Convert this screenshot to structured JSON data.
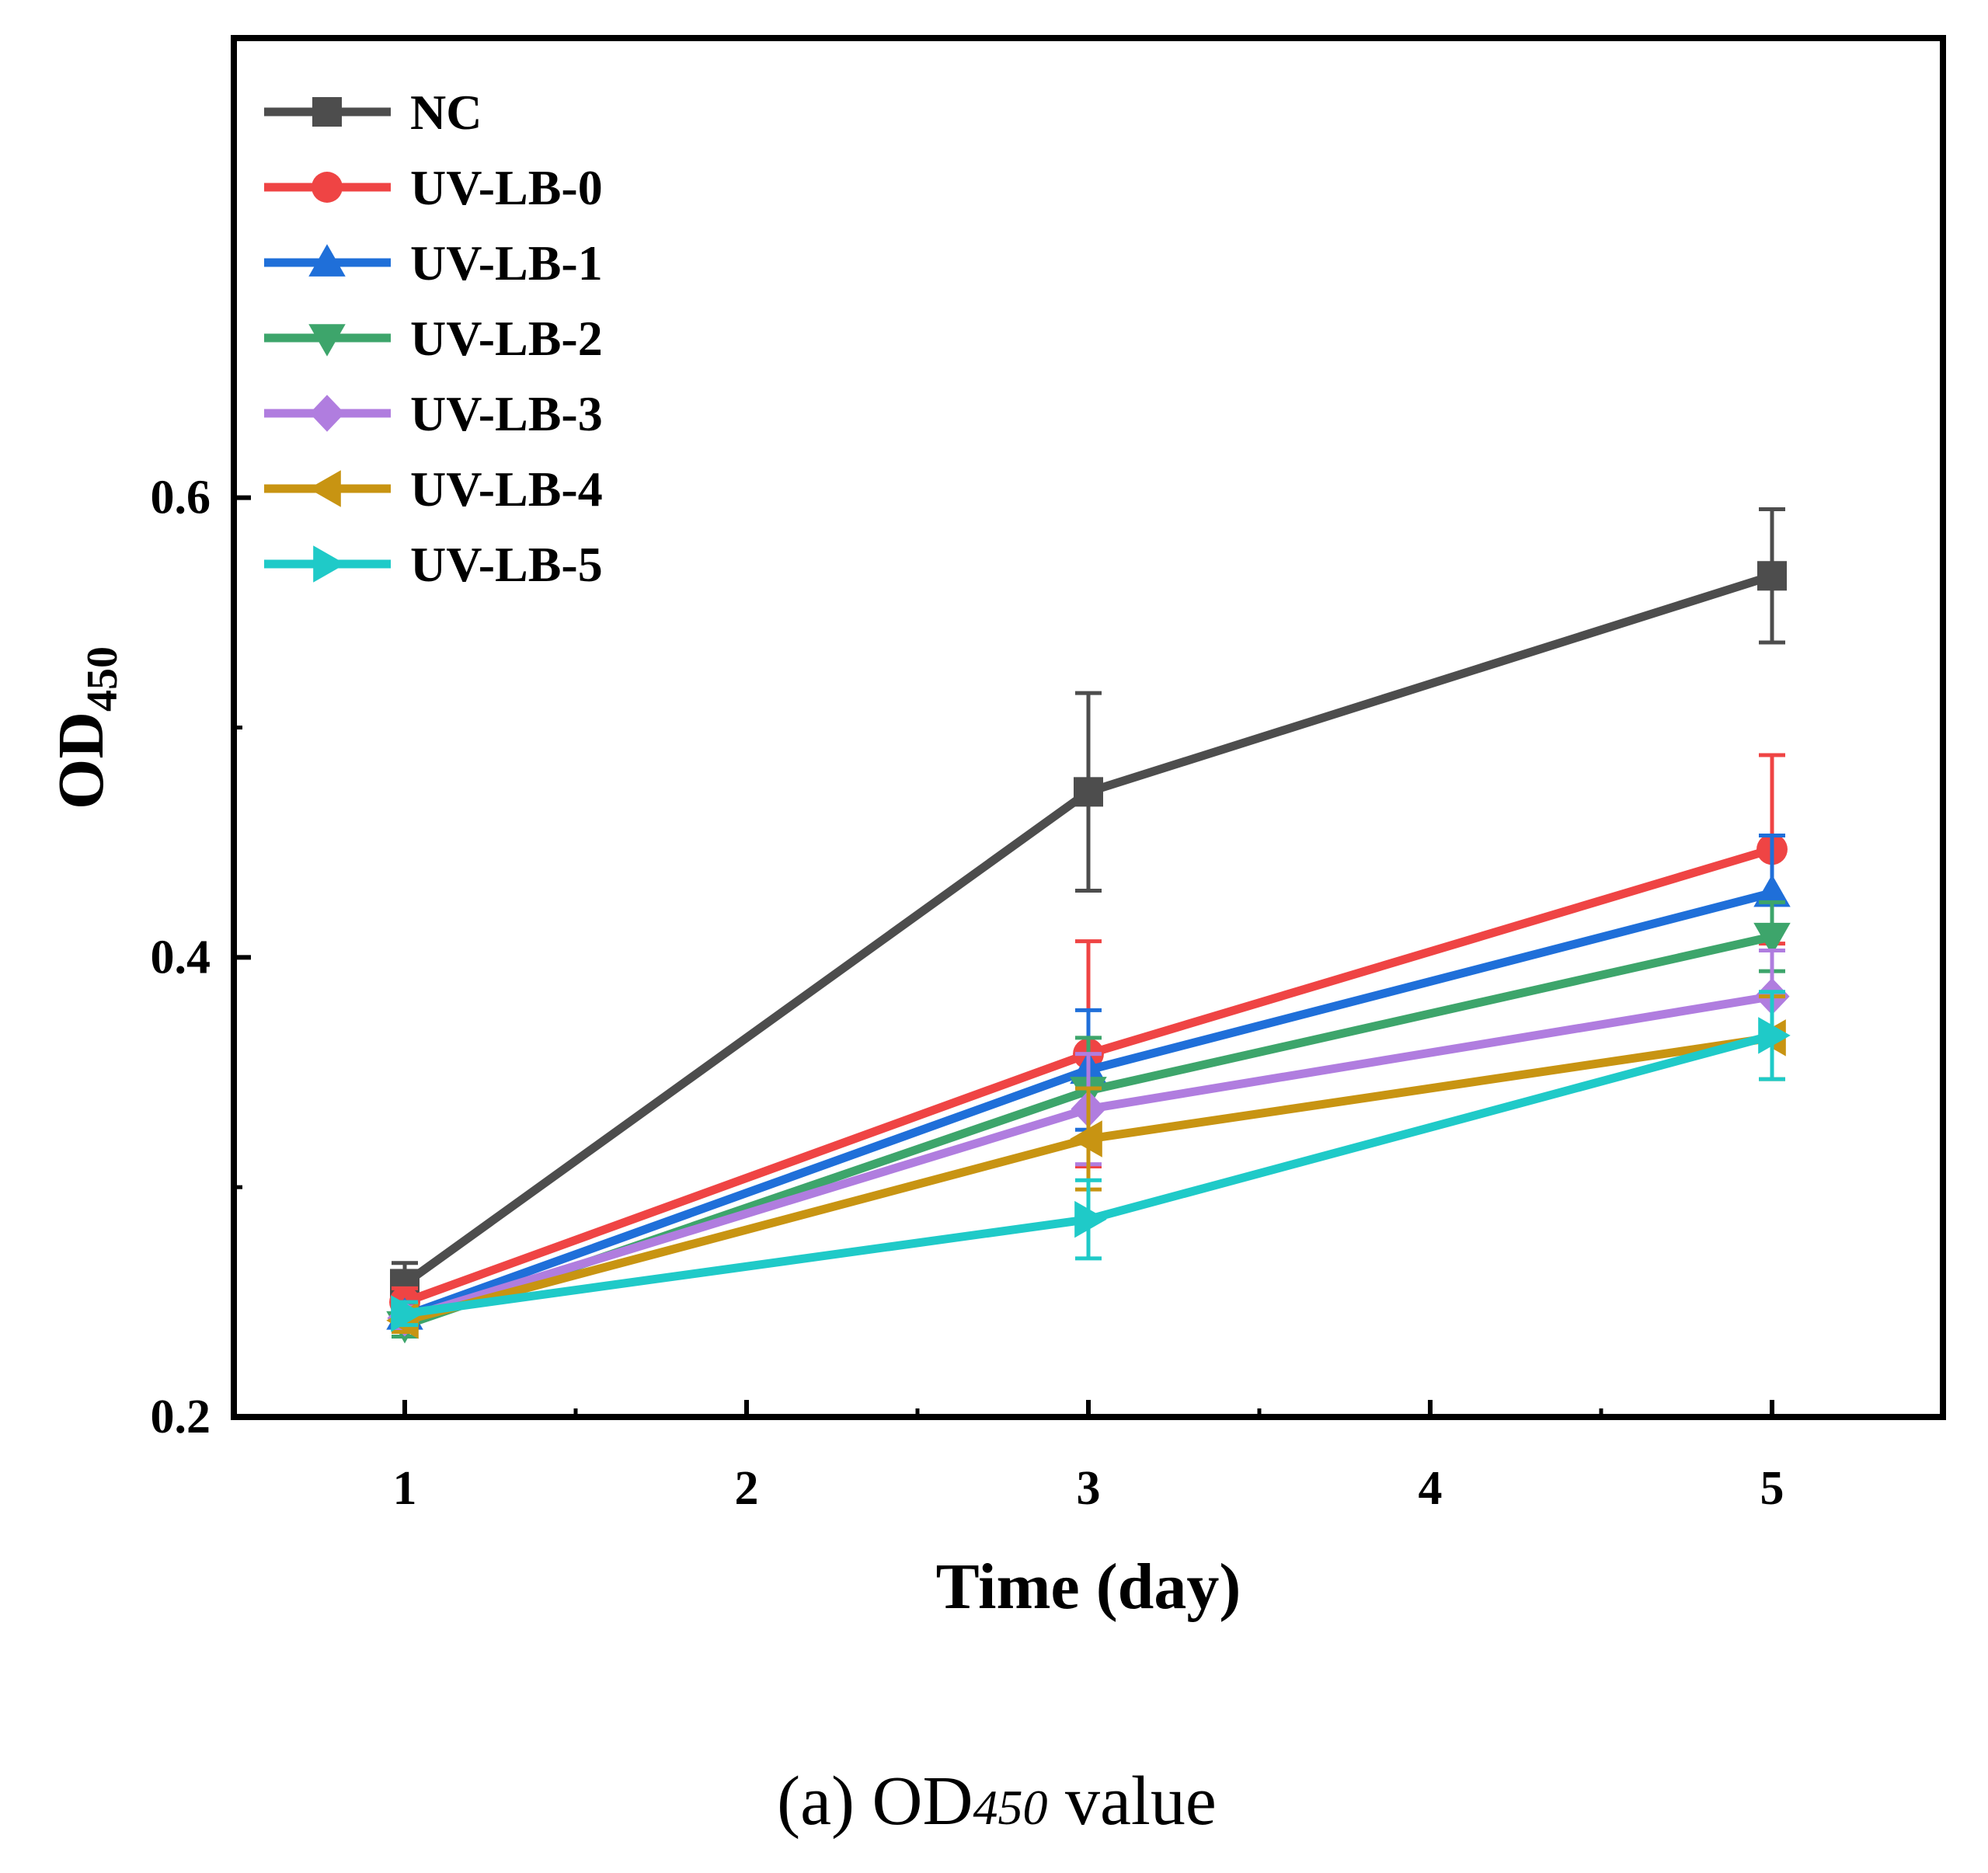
{
  "chart_data": {
    "type": "line",
    "title": "",
    "xlabel": "Time (day)",
    "ylabel_main": "OD",
    "ylabel_sub": "450",
    "x": [
      1,
      3,
      5
    ],
    "xlim": [
      0.5,
      5.5
    ],
    "ylim": [
      0.2,
      0.8
    ],
    "xticks": [
      1,
      2,
      3,
      4,
      5
    ],
    "xtick_labels": [
      "1",
      "2",
      "3",
      "4",
      "5"
    ],
    "yticks_labeled": [
      0.2,
      0.4,
      0.6
    ],
    "ytick_labels": [
      "0.2",
      "0.4",
      "0.6"
    ],
    "yticks_minor": [
      0.3,
      0.5
    ],
    "legend_position": "top-left",
    "series": [
      {
        "name": "NC",
        "color": "#4d4d4d",
        "marker": "square",
        "values": [
          0.258,
          0.472,
          0.566
        ],
        "errors": [
          0.009,
          0.043,
          0.029
        ]
      },
      {
        "name": "UV-LB-0",
        "color": "#ef4444",
        "marker": "circle",
        "values": [
          0.25,
          0.358,
          0.447
        ],
        "errors": [
          0.006,
          0.049,
          0.041
        ]
      },
      {
        "name": "UV-LB-1",
        "color": "#1f6fd9",
        "marker": "triangle-up",
        "values": [
          0.244,
          0.351,
          0.428
        ],
        "errors": [
          0.006,
          0.026,
          0.025
        ]
      },
      {
        "name": "UV-LB-2",
        "color": "#3da56b",
        "marker": "triangle-down",
        "values": [
          0.24,
          0.342,
          0.409
        ],
        "errors": [
          0.005,
          0.023,
          0.015
        ]
      },
      {
        "name": "UV-LB-3",
        "color": "#b07ddf",
        "marker": "diamond",
        "values": [
          0.243,
          0.334,
          0.383
        ],
        "errors": [
          0.005,
          0.024,
          0.02
        ]
      },
      {
        "name": "UV-LB-4",
        "color": "#c89412",
        "marker": "triangle-left",
        "values": [
          0.242,
          0.321,
          0.365
        ],
        "errors": [
          0.005,
          0.022,
          0.018
        ]
      },
      {
        "name": "UV-LB-5",
        "color": "#1fcac8",
        "marker": "triangle-right",
        "values": [
          0.245,
          0.286,
          0.366
        ],
        "errors": [
          0.005,
          0.017,
          0.019
        ]
      }
    ]
  },
  "caption": {
    "prefix": "(a) OD",
    "sub": "450",
    "suffix": " value"
  }
}
